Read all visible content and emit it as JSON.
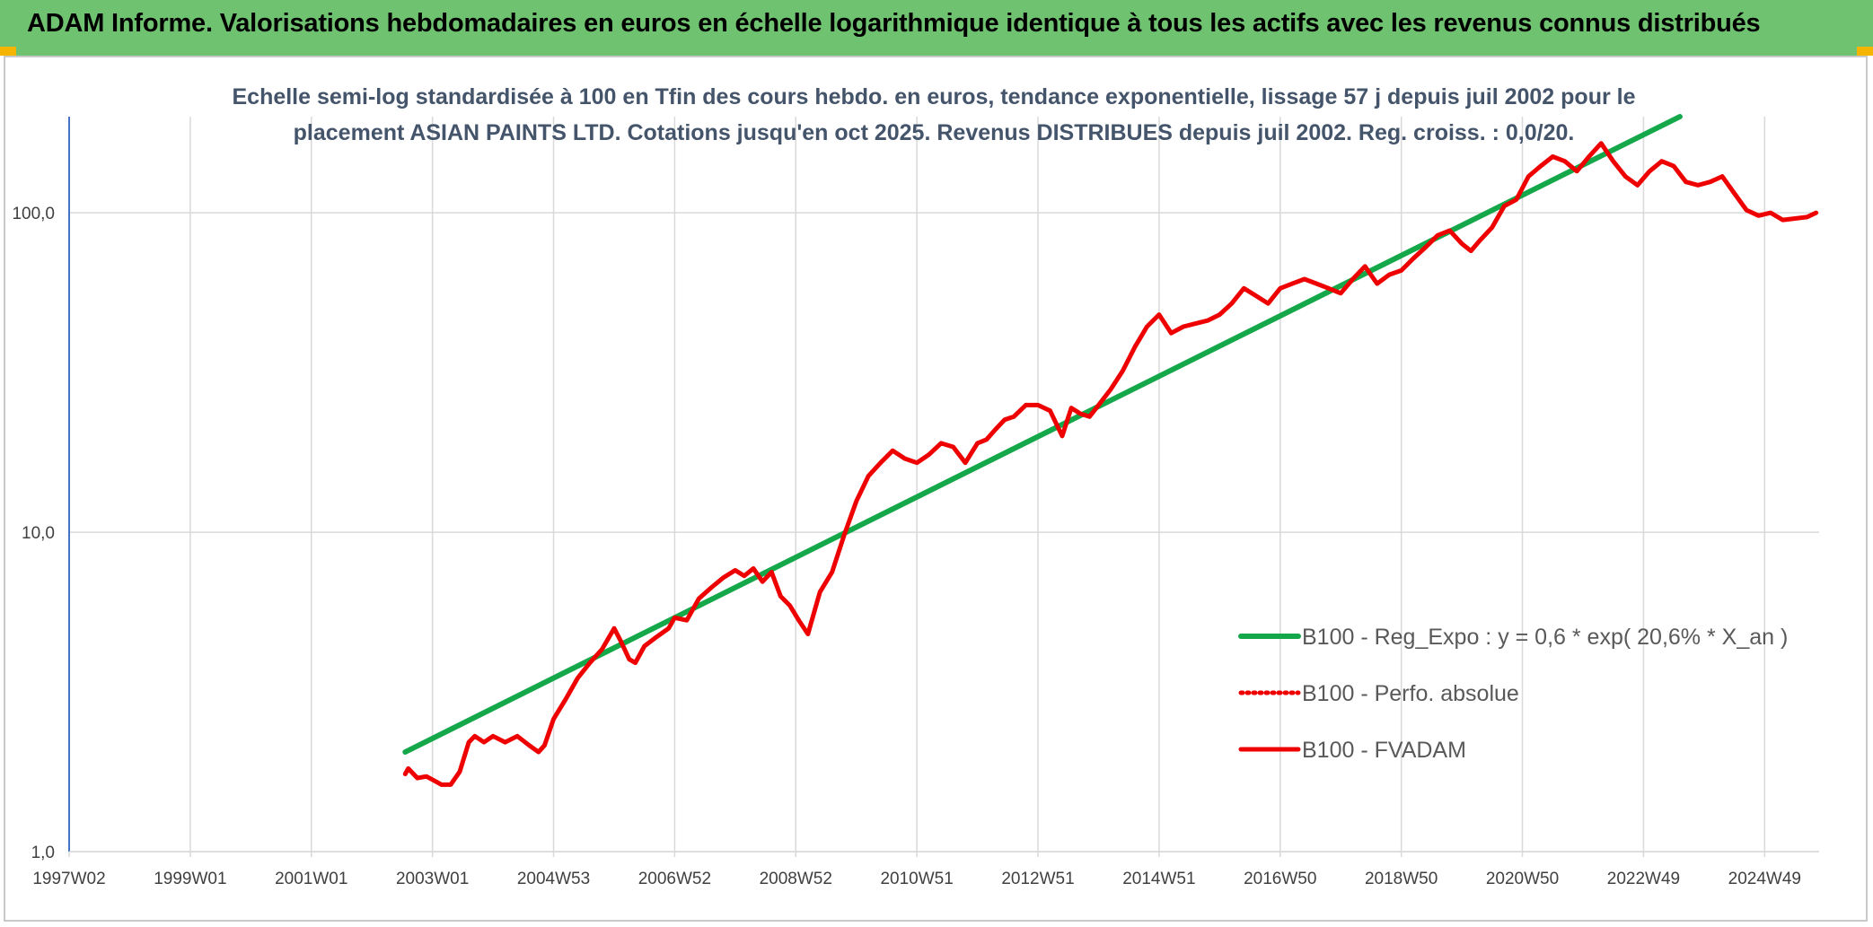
{
  "header": {
    "title": "ADAM Informe. Valorisations hebdomadaires en euros en échelle logarithmique identique à tous les actifs avec les revenus connus distribués"
  },
  "colors": {
    "banner": "#6fc26f",
    "trend": "#14a84a",
    "price": "#ee0000",
    "grid": "#d9d9d9",
    "axis": "#4472c4"
  },
  "chart_data": {
    "type": "line",
    "title_line1": "Echelle semi-log standardisée à 100 en Tfin des cours hebdo. en euros, tendance exponentielle, lissage 57 j depuis juil 2002 pour le",
    "title_line2": "placement ASIAN PAINTS LTD. Cotations jusqu'en oct 2025. Revenus DISTRIBUES depuis juil 2002. Reg. croiss. : 0,0/20.",
    "y_scale": "log",
    "ylim": [
      1,
      200
    ],
    "y_ticks": [
      {
        "value": 1,
        "label": "1,0"
      },
      {
        "value": 10,
        "label": "10,0"
      },
      {
        "value": 100,
        "label": "100,0"
      }
    ],
    "xlim": [
      1997.0,
      2025.9
    ],
    "x_ticks": [
      {
        "value": 1997.0,
        "label": "1997W02"
      },
      {
        "value": 1999.0,
        "label": "1999W01"
      },
      {
        "value": 2001.0,
        "label": "2001W01"
      },
      {
        "value": 2003.0,
        "label": "2003W01"
      },
      {
        "value": 2005.0,
        "label": "2004W53"
      },
      {
        "value": 2007.0,
        "label": "2006W52"
      },
      {
        "value": 2009.0,
        "label": "2008W52"
      },
      {
        "value": 2011.0,
        "label": "2010W51"
      },
      {
        "value": 2013.0,
        "label": "2012W51"
      },
      {
        "value": 2015.0,
        "label": "2014W51"
      },
      {
        "value": 2017.0,
        "label": "2016W50"
      },
      {
        "value": 2019.0,
        "label": "2018W50"
      },
      {
        "value": 2021.0,
        "label": "2020W50"
      },
      {
        "value": 2023.0,
        "label": "2022W49"
      },
      {
        "value": 2025.0,
        "label": "2024W49"
      }
    ],
    "grid": true,
    "legend_position": "bottom-right",
    "series": [
      {
        "name": "B100 - Reg_Expo : y = 0,6 * exp( 20,6% *  X_an )",
        "style": "solid-thick",
        "color": "#14a84a",
        "x": [
          2002.55,
          2023.6
        ],
        "y": [
          2.05,
          200
        ]
      },
      {
        "name": "B100 - Perfo. absolue",
        "style": "dotted",
        "color": "#ee0000",
        "x": [],
        "y": []
      },
      {
        "name": "B100 - FVADAM",
        "style": "solid",
        "color": "#ee0000",
        "x": [
          2002.55,
          2002.6,
          2002.75,
          2002.9,
          2003.0,
          2003.15,
          2003.3,
          2003.45,
          2003.6,
          2003.7,
          2003.85,
          2004.0,
          2004.2,
          2004.4,
          2004.6,
          2004.75,
          2004.85,
          2005.0,
          2005.2,
          2005.4,
          2005.6,
          2005.8,
          2006.0,
          2006.1,
          2006.25,
          2006.35,
          2006.5,
          2006.7,
          2006.9,
          2007.0,
          2007.2,
          2007.4,
          2007.6,
          2007.8,
          2008.0,
          2008.15,
          2008.3,
          2008.45,
          2008.6,
          2008.75,
          2008.9,
          2009.05,
          2009.2,
          2009.4,
          2009.6,
          2009.8,
          2010.0,
          2010.2,
          2010.4,
          2010.6,
          2010.8,
          2011.0,
          2011.2,
          2011.4,
          2011.6,
          2011.8,
          2012.0,
          2012.15,
          2012.3,
          2012.45,
          2012.6,
          2012.8,
          2013.0,
          2013.2,
          2013.4,
          2013.55,
          2013.7,
          2013.85,
          2014.0,
          2014.2,
          2014.4,
          2014.6,
          2014.8,
          2015.0,
          2015.2,
          2015.4,
          2015.6,
          2015.8,
          2016.0,
          2016.2,
          2016.4,
          2016.6,
          2016.8,
          2017.0,
          2017.2,
          2017.4,
          2017.6,
          2017.8,
          2018.0,
          2018.2,
          2018.4,
          2018.6,
          2018.8,
          2019.0,
          2019.2,
          2019.4,
          2019.6,
          2019.8,
          2020.0,
          2020.15,
          2020.3,
          2020.5,
          2020.7,
          2020.9,
          2021.1,
          2021.3,
          2021.5,
          2021.7,
          2021.9,
          2022.1,
          2022.3,
          2022.5,
          2022.7,
          2022.9,
          2023.1,
          2023.3,
          2023.5,
          2023.7,
          2023.9,
          2024.1,
          2024.3,
          2024.5,
          2024.7,
          2024.9,
          2025.1,
          2025.3,
          2025.5,
          2025.7,
          2025.85
        ],
        "y": [
          1.75,
          1.82,
          1.7,
          1.72,
          1.68,
          1.62,
          1.62,
          1.78,
          2.2,
          2.3,
          2.2,
          2.3,
          2.2,
          2.3,
          2.15,
          2.05,
          2.15,
          2.6,
          3.0,
          3.5,
          3.9,
          4.3,
          5.0,
          4.6,
          4.0,
          3.9,
          4.4,
          4.7,
          5.0,
          5.4,
          5.3,
          6.2,
          6.7,
          7.2,
          7.6,
          7.3,
          7.7,
          7.0,
          7.5,
          6.3,
          5.9,
          5.3,
          4.8,
          6.5,
          7.5,
          9.8,
          12.5,
          15.0,
          16.5,
          18.0,
          17.0,
          16.5,
          17.5,
          19.0,
          18.5,
          16.5,
          19.0,
          19.5,
          21.0,
          22.5,
          23.0,
          25.0,
          25.0,
          24.0,
          20.0,
          24.5,
          23.5,
          23.0,
          25.0,
          28.0,
          32.0,
          38.0,
          44.0,
          48.0,
          42.0,
          44.0,
          45.0,
          46.0,
          48.0,
          52.0,
          58.0,
          55.0,
          52.0,
          58.0,
          60.0,
          62.0,
          60.0,
          58.0,
          56.0,
          62.0,
          68.0,
          60.0,
          64.0,
          66.0,
          72.0,
          78.0,
          85.0,
          88.0,
          80.0,
          76.0,
          82.0,
          90.0,
          105.0,
          110.0,
          130.0,
          140.0,
          150.0,
          145.0,
          135.0,
          150.0,
          165.0,
          145.0,
          130.0,
          122.0,
          135.0,
          145.0,
          140.0,
          125.0,
          122.0,
          125.0,
          130.0,
          115.0,
          102.0,
          98.0,
          100.0,
          95.0,
          96.0,
          97.0,
          100.0
        ]
      }
    ]
  }
}
